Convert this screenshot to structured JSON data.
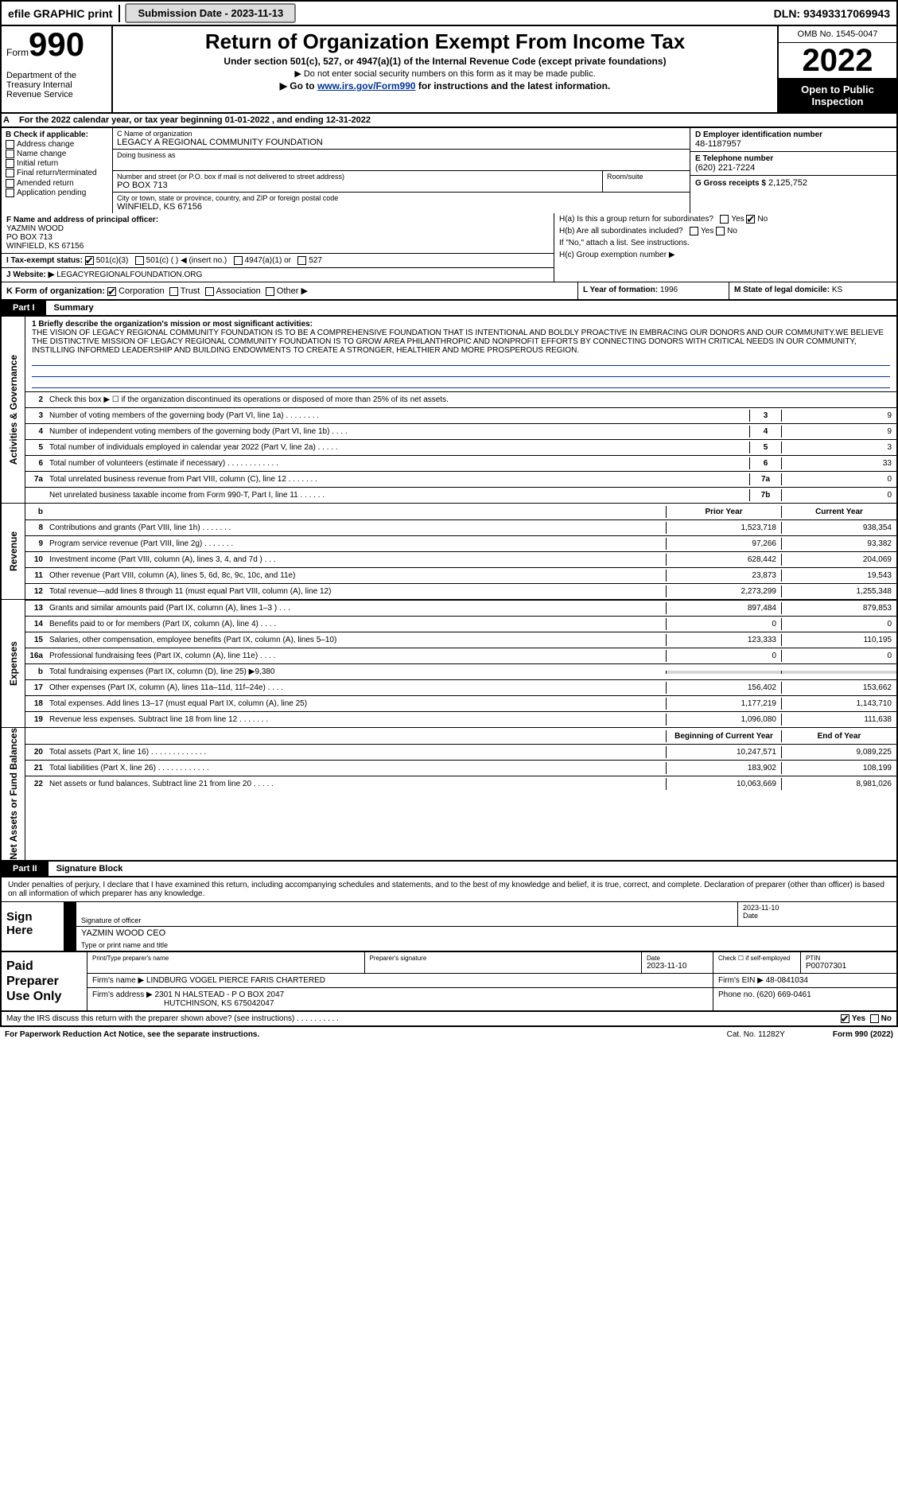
{
  "top": {
    "efile": "efile GRAPHIC print",
    "subBtn": "Submission Date - 2023-11-13",
    "dln": "DLN: 93493317069943"
  },
  "hdr": {
    "formWord": "Form",
    "formNum": "990",
    "dept": "Department of the Treasury Internal Revenue Service",
    "title": "Return of Organization Exempt From Income Tax",
    "sub1": "Under section 501(c), 527, or 4947(a)(1) of the Internal Revenue Code (except private foundations)",
    "sub2": "▶ Do not enter social security numbers on this form as it may be made public.",
    "sub3a": "▶ Go to ",
    "sub3link": "www.irs.gov/Form990",
    "sub3b": " for instructions and the latest information.",
    "omb": "OMB No. 1545-0047",
    "year": "2022",
    "open": "Open to Public Inspection"
  },
  "rowA": "For the 2022 calendar year, or tax year beginning 01-01-2022  , and ending 12-31-2022",
  "colB": {
    "hdr": "B Check if applicable:",
    "items": [
      "Address change",
      "Name change",
      "Initial return",
      "Final return/terminated",
      "Amended return",
      "Application pending"
    ]
  },
  "c": {
    "nameLbl": "C Name of organization",
    "name": "LEGACY A REGIONAL COMMUNITY FOUNDATION",
    "dbaLbl": "Doing business as",
    "addrLbl": "Number and street (or P.O. box if mail is not delivered to street address)",
    "addr": "PO BOX 713",
    "roomLbl": "Room/suite",
    "cityLbl": "City or town, state or province, country, and ZIP or foreign postal code",
    "city": "WINFIELD, KS  67156"
  },
  "d": {
    "lbl": "D Employer identification number",
    "val": "48-1187957"
  },
  "e": {
    "lbl": "E Telephone number",
    "val": "(620) 221-7224"
  },
  "g": {
    "lbl": "G Gross receipts $",
    "val": "2,125,752"
  },
  "f": {
    "lbl": "F  Name and address of principal officer:",
    "name": "YAZMIN WOOD",
    "addr": "PO BOX 713",
    "city": "WINFIELD, KS  67156"
  },
  "h": {
    "a": "H(a)  Is this a group return for subordinates?",
    "b": "H(b)  Are all subordinates included?",
    "bnote": "If \"No,\" attach a list. See instructions.",
    "c": "H(c)  Group exemption number ▶"
  },
  "i": {
    "lbl": "I  Tax-exempt status:",
    "opts": [
      "501(c)(3)",
      "501(c) (  ) ◀ (insert no.)",
      "4947(a)(1) or",
      "527"
    ]
  },
  "j": {
    "lbl": "J  Website: ▶",
    "val": "LEGACYREGIONALFOUNDATION.ORG"
  },
  "k": "K Form of organization:",
  "kopts": [
    "Corporation",
    "Trust",
    "Association",
    "Other ▶"
  ],
  "l": {
    "lbl": "L Year of formation:",
    "val": "1996"
  },
  "m": {
    "lbl": "M State of legal domicile:",
    "val": "KS"
  },
  "part1": {
    "tag": "Part I",
    "title": "Summary"
  },
  "gov": {
    "tab": "Activities & Governance",
    "q1lbl": "1  Briefly describe the organization's mission or most significant activities:",
    "mission": "THE VISION OF LEGACY REGIONAL COMMUNITY FOUNDATION IS TO BE A COMPREHENSIVE FOUNDATION THAT IS INTENTIONAL AND BOLDLY PROACTIVE IN EMBRACING OUR DONORS AND OUR COMMUNITY.WE BELIEVE THE DISTINCTIVE MISSION OF LEGACY REGIONAL COMMUNITY FOUNDATION IS TO GROW AREA PHILANTHROPIC AND NONPROFIT EFFORTS BY CONNECTING DONORS WITH CRITICAL NEEDS IN OUR COMMUNITY, INSTILLING INFORMED LEADERSHIP AND BUILDING ENDOWMENTS TO CREATE A STRONGER, HEALTHIER AND MORE PROSPEROUS REGION.",
    "q2": "Check this box ▶ ☐ if the organization discontinued its operations or disposed of more than 25% of its net assets.",
    "rows": [
      {
        "n": "3",
        "t": "Number of voting members of the governing body (Part VI, line 1a)  .  .  .  .  .  .  .  .",
        "b": "3",
        "v": "9"
      },
      {
        "n": "4",
        "t": "Number of independent voting members of the governing body (Part VI, line 1b)  .  .  .  .",
        "b": "4",
        "v": "9"
      },
      {
        "n": "5",
        "t": "Total number of individuals employed in calendar year 2022 (Part V, line 2a)  .  .  .  .  .",
        "b": "5",
        "v": "3"
      },
      {
        "n": "6",
        "t": "Total number of volunteers (estimate if necessary)  .  .  .  .  .  .  .  .  .  .  .  .",
        "b": "6",
        "v": "33"
      },
      {
        "n": "7a",
        "t": "Total unrelated business revenue from Part VIII, column (C), line 12  .  .  .  .  .  .  .",
        "b": "7a",
        "v": "0"
      },
      {
        "n": "",
        "t": "Net unrelated business taxable income from Form 990-T, Part I, line 11  .  .  .  .  .  .",
        "b": "7b",
        "v": "0"
      }
    ]
  },
  "revHdr": {
    "prior": "Prior Year",
    "curr": "Current Year"
  },
  "rev": {
    "tab": "Revenue",
    "rows": [
      {
        "n": "8",
        "t": "Contributions and grants (Part VIII, line 1h)  .  .  .  .  .  .  .",
        "p": "1,523,718",
        "c": "938,354"
      },
      {
        "n": "9",
        "t": "Program service revenue (Part VIII, line 2g)  .  .  .  .  .  .  .",
        "p": "97,266",
        "c": "93,382"
      },
      {
        "n": "10",
        "t": "Investment income (Part VIII, column (A), lines 3, 4, and 7d )  .  .  .",
        "p": "628,442",
        "c": "204,069"
      },
      {
        "n": "11",
        "t": "Other revenue (Part VIII, column (A), lines 5, 6d, 8c, 9c, 10c, and 11e)",
        "p": "23,873",
        "c": "19,543"
      },
      {
        "n": "12",
        "t": "Total revenue—add lines 8 through 11 (must equal Part VIII, column (A), line 12)",
        "p": "2,273,299",
        "c": "1,255,348"
      }
    ]
  },
  "exp": {
    "tab": "Expenses",
    "rows": [
      {
        "n": "13",
        "t": "Grants and similar amounts paid (Part IX, column (A), lines 1–3 )  .  .  .",
        "p": "897,484",
        "c": "879,853"
      },
      {
        "n": "14",
        "t": "Benefits paid to or for members (Part IX, column (A), line 4)  .  .  .  .",
        "p": "0",
        "c": "0"
      },
      {
        "n": "15",
        "t": "Salaries, other compensation, employee benefits (Part IX, column (A), lines 5–10)",
        "p": "123,333",
        "c": "110,195"
      },
      {
        "n": "16a",
        "t": "Professional fundraising fees (Part IX, column (A), line 11e)  .  .  .  .",
        "p": "0",
        "c": "0"
      },
      {
        "n": "b",
        "t": "Total fundraising expenses (Part IX, column (D), line 25) ▶9,380",
        "p": "",
        "c": "",
        "shade": true
      },
      {
        "n": "17",
        "t": "Other expenses (Part IX, column (A), lines 11a–11d, 11f–24e)  .  .  .  .",
        "p": "156,402",
        "c": "153,662"
      },
      {
        "n": "18",
        "t": "Total expenses. Add lines 13–17 (must equal Part IX, column (A), line 25)",
        "p": "1,177,219",
        "c": "1,143,710"
      },
      {
        "n": "19",
        "t": "Revenue less expenses. Subtract line 18 from line 12  .  .  .  .  .  .  .",
        "p": "1,096,080",
        "c": "111,638"
      }
    ]
  },
  "netHdr": {
    "prior": "Beginning of Current Year",
    "curr": "End of Year"
  },
  "net": {
    "tab": "Net Assets or Fund Balances",
    "rows": [
      {
        "n": "20",
        "t": "Total assets (Part X, line 16)  .  .  .  .  .  .  .  .  .  .  .  .  .",
        "p": "10,247,571",
        "c": "9,089,225"
      },
      {
        "n": "21",
        "t": "Total liabilities (Part X, line 26)  .  .  .  .  .  .  .  .  .  .  .  .",
        "p": "183,902",
        "c": "108,199"
      },
      {
        "n": "22",
        "t": "Net assets or fund balances. Subtract line 21 from line 20  .  .  .  .  .",
        "p": "10,063,669",
        "c": "8,981,026"
      }
    ]
  },
  "part2": {
    "tag": "Part II",
    "title": "Signature Block"
  },
  "sig": {
    "intro": "Under penalties of perjury, I declare that I have examined this return, including accompanying schedules and statements, and to the best of my knowledge and belief, it is true, correct, and complete. Declaration of preparer (other than officer) is based on all information of which preparer has any knowledge.",
    "here": "Sign Here",
    "sigOf": "Signature of officer",
    "date": "2023-11-10",
    "dateLbl": "Date",
    "name": "YAZMIN WOOD CEO",
    "nameLbl": "Type or print name and title"
  },
  "prep": {
    "label": "Paid Preparer Use Only",
    "r1": {
      "a": "Print/Type preparer's name",
      "b": "Preparer's signature",
      "c": "Date",
      "cv": "2023-11-10",
      "d": "Check ☐ if self-employed",
      "e": "PTIN",
      "ev": "P00707301"
    },
    "r2": {
      "a": "Firm's name    ▶",
      "av": "LINDBURG VOGEL PIERCE FARIS CHARTERED",
      "b": "Firm's EIN ▶",
      "bv": "48-0841034"
    },
    "r3": {
      "a": "Firm's address ▶",
      "av": "2301 N HALSTEAD - P O BOX 2047",
      "b": "Phone no.",
      "bv": "(620) 669-0461"
    },
    "r3b": "HUTCHINSON, KS  675042047"
  },
  "foot": {
    "q": "May the IRS discuss this return with the preparer shown above? (see instructions)  .  .  .  .  .  .  .  .  .  .",
    "yes": "Yes",
    "no": "No"
  },
  "pra": {
    "a": "For Paperwork Reduction Act Notice, see the separate instructions.",
    "cat": "Cat. No. 11282Y",
    "form": "Form 990 (2022)"
  }
}
